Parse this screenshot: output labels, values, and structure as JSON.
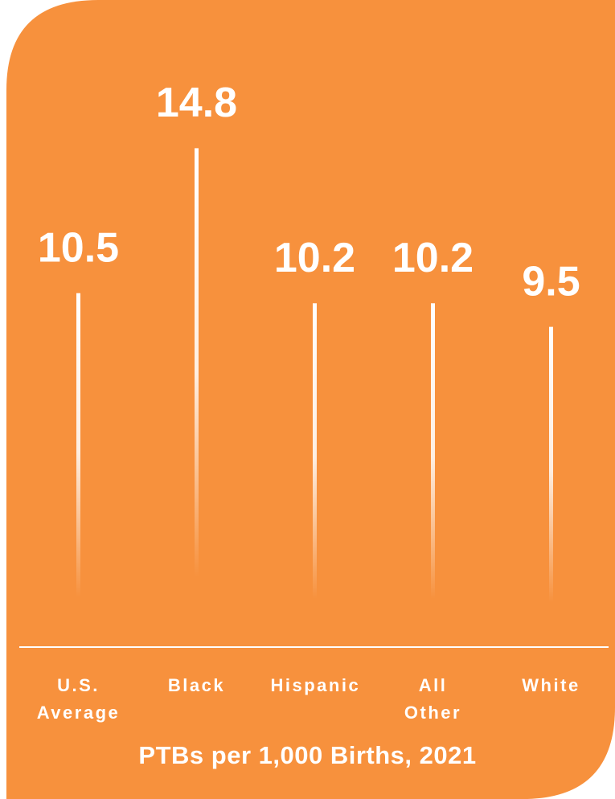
{
  "chart_data": {
    "type": "bar",
    "title": "PTBs per 1,000 Births, 2021",
    "categories": [
      "U.S. Average",
      "Black",
      "Hispanic",
      "All Other",
      "White"
    ],
    "values": [
      10.5,
      14.8,
      10.2,
      10.2,
      9.5
    ],
    "color": "#ffffff",
    "ylim": [
      0,
      15
    ]
  }
}
